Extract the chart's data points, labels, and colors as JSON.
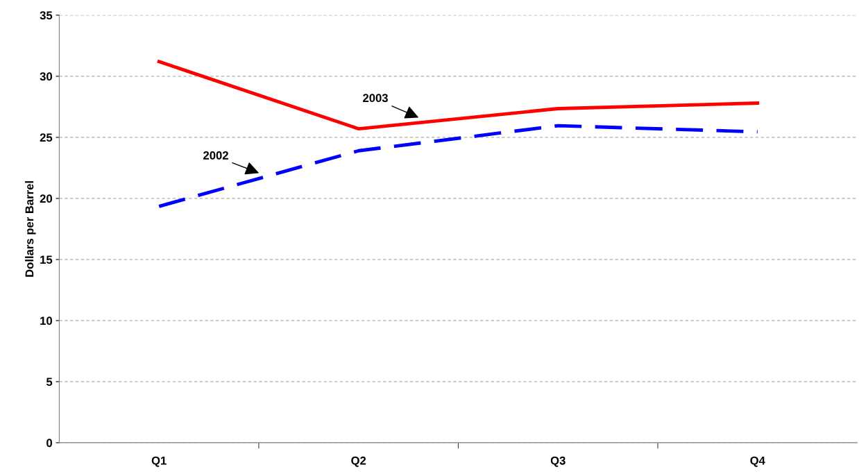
{
  "chart_data": {
    "type": "line",
    "ylabel": "Dollars per Barrel",
    "categories": [
      "Q1",
      "Q2",
      "Q3",
      "Q4"
    ],
    "series": [
      {
        "name": "2003",
        "color": "#ff0000",
        "values": [
          31.2,
          25.7,
          27.35,
          27.8
        ],
        "line_style": "solid"
      },
      {
        "name": "2002",
        "color": "#0000ff",
        "values": [
          19.35,
          23.9,
          25.95,
          25.45
        ],
        "line_style": "dashed"
      }
    ],
    "ylim": [
      0,
      35
    ],
    "yticks": [
      0,
      5,
      10,
      15,
      20,
      25,
      30,
      35
    ],
    "grid": "y",
    "legend": false,
    "marker": "none"
  }
}
